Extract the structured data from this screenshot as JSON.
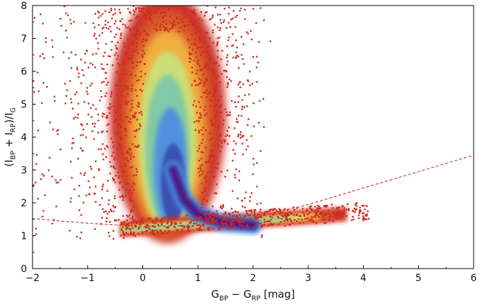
{
  "chart_data": {
    "type": "scatter",
    "title": "",
    "x_axis": {
      "label_parts": [
        "G",
        "BP",
        " − G",
        "RP",
        " [mag]"
      ],
      "range": [
        -2,
        6
      ],
      "ticks": [
        -2,
        -1,
        0,
        1,
        2,
        3,
        4,
        5,
        6
      ],
      "tick_labels": [
        "−2",
        "−1",
        "0",
        "1",
        "2",
        "3",
        "4",
        "5",
        "6"
      ]
    },
    "y_axis": {
      "label_parts": [
        "(I",
        "BP",
        " + I",
        "RP",
        ")/I",
        "G"
      ],
      "range": [
        0,
        8
      ],
      "ticks": [
        0,
        1,
        2,
        3,
        4,
        5,
        6,
        7,
        8
      ],
      "tick_labels": [
        "0",
        "1",
        "2",
        "3",
        "4",
        "5",
        "6",
        "7",
        "8"
      ]
    },
    "grid": false,
    "legend": "none",
    "density_colormap": [
      "#5a0a7a",
      "#3a4fb0",
      "#4f8ee0",
      "#7fc8a8",
      "#c9e07a",
      "#f2b540",
      "#d95a2a",
      "#c8281e"
    ],
    "outlier_point_color": "#cc2a1e",
    "ridges": [
      {
        "name_hint": "",
        "x_start": -0.4,
        "x_end": 3.7,
        "y_start": 1.18,
        "y_end": 1.65
      },
      {
        "name_hint": "",
        "x_peak": 0.45,
        "y_peak": 8.0,
        "x_left_at_base": -0.3,
        "x_right_at_base": 1.6,
        "y_base": 1.3
      }
    ],
    "threshold_curve": {
      "style": "dashed",
      "color": "#cc2a1e",
      "points": [
        [
          -2.0,
          1.52
        ],
        [
          -1.0,
          1.38
        ],
        [
          0.0,
          1.28
        ],
        [
          1.0,
          1.31
        ],
        [
          2.0,
          1.55
        ],
        [
          3.0,
          1.95
        ],
        [
          4.0,
          2.45
        ],
        [
          5.0,
          2.95
        ],
        [
          6.0,
          3.45
        ]
      ]
    }
  }
}
